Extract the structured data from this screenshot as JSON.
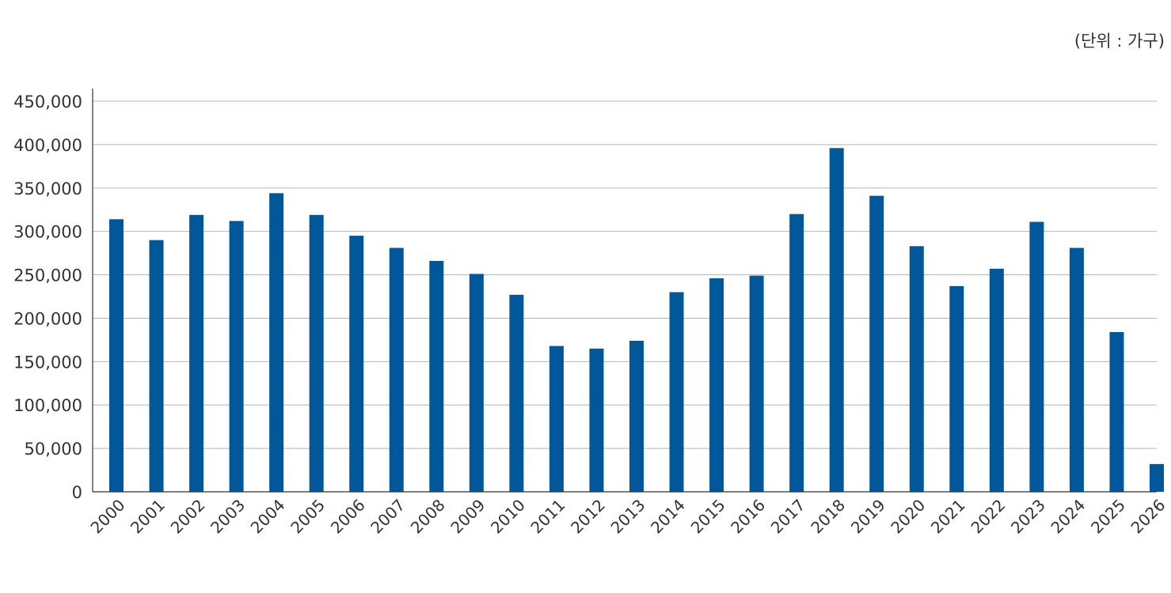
{
  "chart_data": {
    "type": "bar",
    "unit_label": "(단위 : 가구)",
    "categories": [
      "2000",
      "2001",
      "2002",
      "2003",
      "2004",
      "2005",
      "2006",
      "2007",
      "2008",
      "2009",
      "2010",
      "2011",
      "2012",
      "2013",
      "2014",
      "2015",
      "2016",
      "2017",
      "2018",
      "2019",
      "2020",
      "2021",
      "2022",
      "2023",
      "2024",
      "2025",
      "2026"
    ],
    "values": [
      314000,
      290000,
      319000,
      312000,
      344000,
      319000,
      295000,
      281000,
      266000,
      251000,
      227000,
      168000,
      165000,
      174000,
      230000,
      246000,
      249000,
      320000,
      396000,
      341000,
      283000,
      237000,
      257000,
      311000,
      281000,
      184000,
      32000
    ],
    "ylim": [
      0,
      450000
    ],
    "yticks": [
      0,
      50000,
      100000,
      150000,
      200000,
      250000,
      300000,
      350000,
      400000,
      450000
    ],
    "ytick_labels": [
      "0",
      "50,000",
      "100,000",
      "150,000",
      "200,000",
      "250,000",
      "300,000",
      "350,000",
      "400,000",
      "450,000"
    ],
    "grid": true,
    "bar_color": "#00579a"
  }
}
